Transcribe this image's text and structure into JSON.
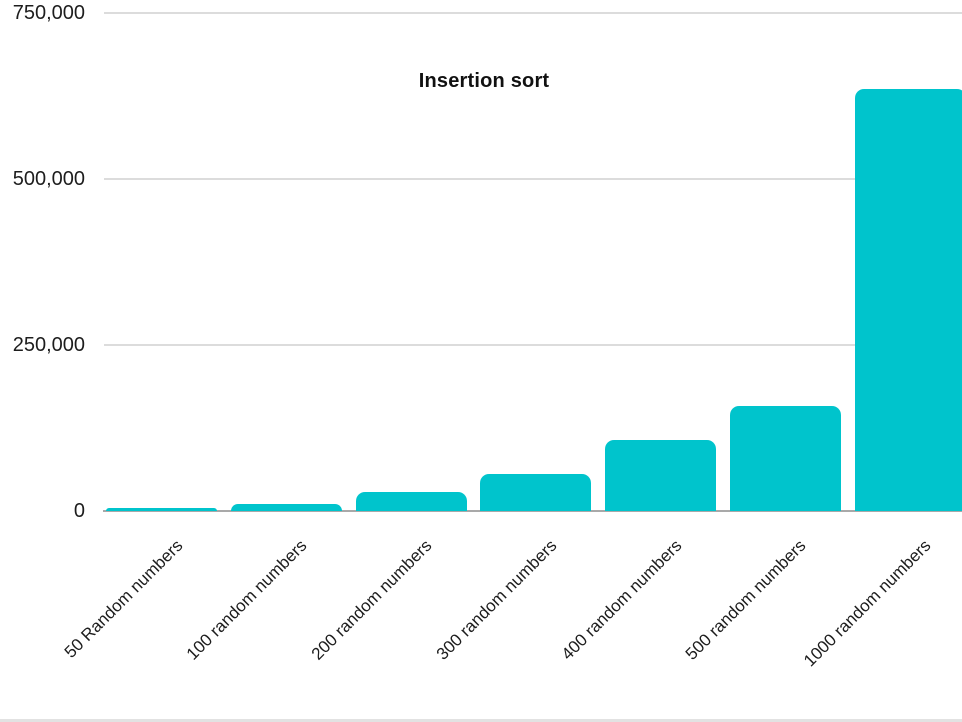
{
  "chart_data": {
    "type": "bar",
    "title": "Insertion sort",
    "categories": [
      "50 Random numbers",
      "100 random numbers",
      "200 random numbers",
      "300 random numbers",
      "400 random numbers",
      "500 random numbers",
      "1000 random numbers"
    ],
    "values": [
      4000,
      10000,
      29000,
      56000,
      107000,
      158000,
      635000
    ],
    "xlabel": "",
    "ylabel": "",
    "ylim": [
      0,
      750000
    ],
    "grid": true,
    "legend": "none",
    "y_ticks": [
      {
        "value": 0,
        "label": "0"
      },
      {
        "value": 250000,
        "label": "250,000"
      },
      {
        "value": 500000,
        "label": "500,000"
      },
      {
        "value": 750000,
        "label": "750,000"
      }
    ],
    "bar_color": "#00c4cc"
  },
  "colors": {
    "bar": "#00c4cc",
    "gridline": "#dcdcdc",
    "axis_line": "#a9a9a9",
    "text": "#1d1d1d",
    "bottom_border": "#e2e2e2"
  }
}
